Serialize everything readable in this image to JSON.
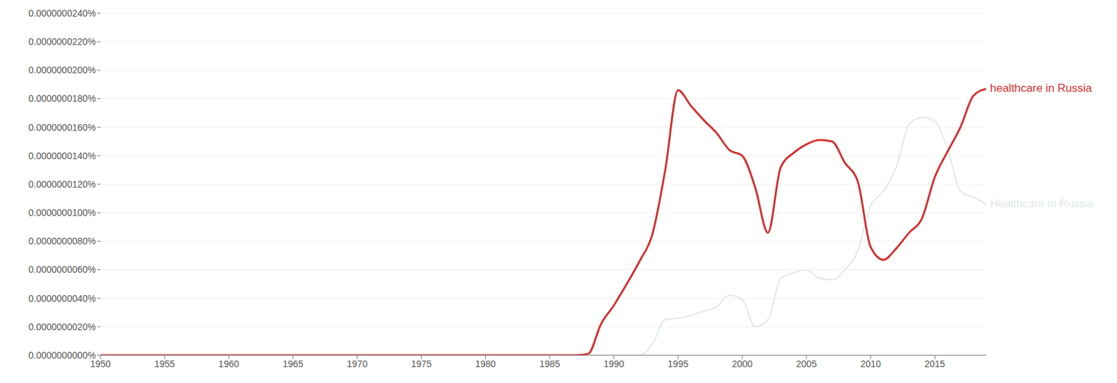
{
  "chart_data": {
    "type": "line",
    "x": [
      1950,
      1951,
      1952,
      1953,
      1954,
      1955,
      1956,
      1957,
      1958,
      1959,
      1960,
      1961,
      1962,
      1963,
      1964,
      1965,
      1966,
      1967,
      1968,
      1969,
      1970,
      1971,
      1972,
      1973,
      1974,
      1975,
      1976,
      1977,
      1978,
      1979,
      1980,
      1981,
      1982,
      1983,
      1984,
      1985,
      1986,
      1987,
      1988,
      1989,
      1990,
      1991,
      1992,
      1993,
      1994,
      1995,
      1996,
      1997,
      1998,
      1999,
      2000,
      2001,
      2002,
      2003,
      2004,
      2005,
      2006,
      2007,
      2008,
      2009,
      2010,
      2011,
      2012,
      2013,
      2014,
      2015,
      2016,
      2017,
      2018,
      2019
    ],
    "series": [
      {
        "name": "healthcare in Russia",
        "color": "#d32f2f",
        "values": [
          0,
          0,
          0,
          0,
          0,
          0,
          0,
          0,
          0,
          0,
          0,
          0,
          0,
          0,
          0,
          0,
          0,
          0,
          0,
          0,
          0,
          0,
          0,
          0,
          0,
          0,
          0,
          0,
          0,
          0,
          0,
          0,
          0,
          0,
          0,
          0,
          0,
          0,
          1e-10,
          2.2e-09,
          3.5e-09,
          5e-09,
          6.6e-09,
          8.5e-09,
          1.3e-08,
          1.86e-08,
          1.75e-08,
          1.65e-08,
          1.56e-08,
          1.44e-08,
          1.4e-08,
          1.18e-08,
          8.6e-09,
          1.32e-08,
          1.42e-08,
          1.48e-08,
          1.51e-08,
          1.5e-08,
          1.35e-08,
          1.22e-08,
          7.6e-09,
          6.7e-09,
          7.5e-09,
          8.6e-09,
          9.6e-09,
          1.25e-08,
          1.43e-08,
          1.6e-08,
          1.82e-08,
          1.87e-08
        ]
      },
      {
        "name": "Healthcare in Russia",
        "color": "#dfe9e6",
        "values": [
          0,
          0,
          0,
          0,
          0,
          0,
          0,
          0,
          0,
          0,
          0,
          0,
          0,
          0,
          0,
          0,
          0,
          0,
          0,
          0,
          0,
          0,
          0,
          0,
          0,
          0,
          0,
          0,
          0,
          0,
          0,
          0,
          0,
          0,
          0,
          0,
          0,
          0,
          0,
          0,
          0,
          0,
          0,
          8e-10,
          2.5e-09,
          2.6e-09,
          2.8e-09,
          3.1e-09,
          3.4e-09,
          4.2e-09,
          3.9e-09,
          2e-09,
          2.5e-09,
          5.4e-09,
          5.8e-09,
          6e-09,
          5.4e-09,
          5.3e-09,
          6e-09,
          7.3e-09,
          1.05e-08,
          1.15e-08,
          1.32e-08,
          1.62e-08,
          1.67e-08,
          1.64e-08,
          1.45e-08,
          1.15e-08,
          1.11e-08,
          1.06e-08
        ]
      }
    ],
    "xlim": [
      1950,
      2019
    ],
    "xticks": [
      1950,
      1955,
      1960,
      1965,
      1970,
      1975,
      1980,
      1985,
      1990,
      1995,
      2000,
      2005,
      2010,
      2015
    ],
    "ylim": [
      0,
      2.4e-08
    ],
    "yticks": [
      {
        "value": 0,
        "label": "0.0000000000%"
      },
      {
        "value": 2e-09,
        "label": "0.0000000020%"
      },
      {
        "value": 4e-09,
        "label": "0.0000000040%"
      },
      {
        "value": 6e-09,
        "label": "0.0000000060%"
      },
      {
        "value": 8e-09,
        "label": "0.0000000080%"
      },
      {
        "value": 1e-08,
        "label": "0.0000000100%"
      },
      {
        "value": 1.2e-08,
        "label": "0.0000000120%"
      },
      {
        "value": 1.4e-08,
        "label": "0.0000000140%"
      },
      {
        "value": 1.6e-08,
        "label": "0.0000000160%"
      },
      {
        "value": 1.8e-08,
        "label": "0.0000000180%"
      },
      {
        "value": 2e-08,
        "label": "0.0000000200%"
      },
      {
        "value": 2.2e-08,
        "label": "0.0000000220%"
      },
      {
        "value": 2.4e-08,
        "label": "0.0000000240%"
      }
    ],
    "grid": true
  }
}
